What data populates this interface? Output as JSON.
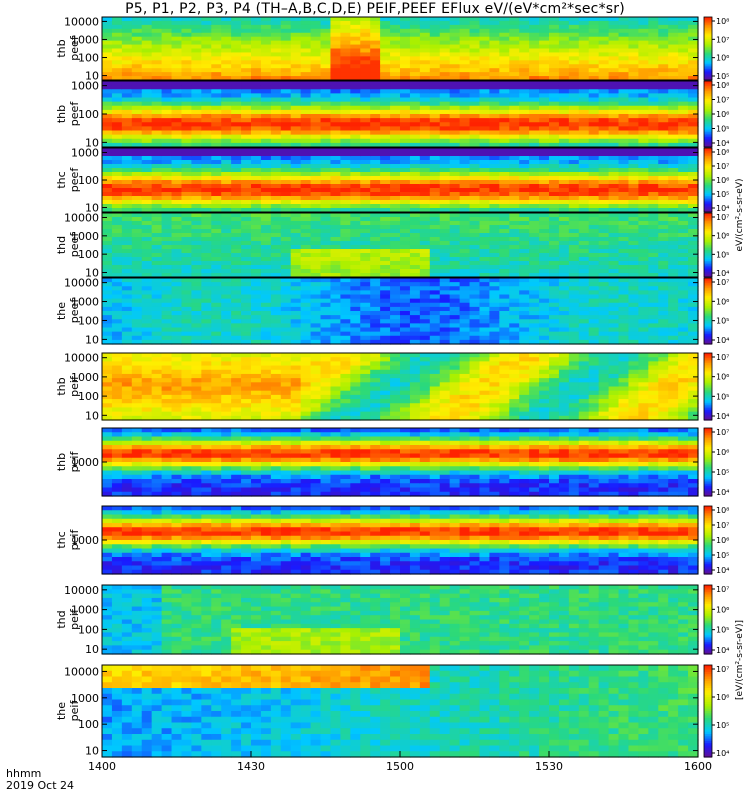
{
  "title": "P5, P1, P2, P3, P4 (TH–A,B,C,D,E) PEIF,PEEF EFlux eV/(eV*cm²*sec*sr)",
  "footer": {
    "time_label": "hhmm",
    "date_label": "2019 Oct 24"
  },
  "colorbar_label_top": "eV/(cm²-s-sr-eV)",
  "colorbar_label_bottom": "[eV/(cm²-s-sr-eV)]",
  "colormap": [
    "#6a0d8a",
    "#1a1aff",
    "#00c8ff",
    "#2bd97a",
    "#aaf000",
    "#ffee00",
    "#ff9900",
    "#ff2200"
  ],
  "chart_data": {
    "type": "heatmap",
    "x_ticks": [
      "1400",
      "1430",
      "1500",
      "1530",
      "1600"
    ],
    "x_range_minutes": [
      0,
      120
    ],
    "y_scale": "log",
    "panels": [
      {
        "probe": "thb",
        "species": "peef",
        "yticks": [
          "10",
          "100",
          "1000",
          "10000"
        ],
        "cb_ticks": [
          "10⁵",
          "10⁶",
          "10⁷",
          "10⁸"
        ],
        "variant": 0
      },
      {
        "probe": "thb",
        "species": "peef",
        "yticks": [
          "10",
          "100",
          "1000"
        ],
        "cb_ticks": [
          "10⁴",
          "10⁵",
          "10⁶",
          "10⁷",
          "10⁸"
        ],
        "variant": 1
      },
      {
        "probe": "thc",
        "species": "peef",
        "yticks": [
          "10",
          "100",
          "1000"
        ],
        "cb_ticks": [
          "10⁴",
          "10⁵",
          "10⁶",
          "10⁷",
          "10⁸"
        ],
        "variant": 2
      },
      {
        "probe": "thd",
        "species": "peef",
        "yticks": [
          "10",
          "100",
          "1000",
          "10000"
        ],
        "cb_ticks": [
          "10⁴",
          "10⁵",
          "10⁶",
          "10⁷"
        ],
        "variant": 3
      },
      {
        "probe": "the",
        "species": "peef",
        "yticks": [
          "10",
          "100",
          "1000",
          "10000"
        ],
        "cb_ticks": [
          "10⁴",
          "10⁵",
          "10⁶",
          "10⁷"
        ],
        "variant": 4
      },
      {
        "probe": "thb",
        "species": "peif",
        "yticks": [
          "10",
          "100",
          "1000",
          "10000"
        ],
        "cb_ticks": [
          "10⁴",
          "10⁵",
          "10⁶",
          "10⁷"
        ],
        "variant": 5
      },
      {
        "probe": "thb",
        "species": "peif",
        "yticks": [
          "1000"
        ],
        "cb_ticks": [
          "10⁴",
          "10⁵",
          "10⁶",
          "10⁷"
        ],
        "variant": 6
      },
      {
        "probe": "thc",
        "species": "peif",
        "yticks": [
          "1000"
        ],
        "cb_ticks": [
          "10⁴",
          "10⁵",
          "10⁶",
          "10⁷",
          "10⁸"
        ],
        "variant": 7
      },
      {
        "probe": "thd",
        "species": "peif",
        "yticks": [
          "10",
          "100",
          "1000",
          "10000"
        ],
        "cb_ticks": [
          "10⁴",
          "10⁵",
          "10⁶",
          "10⁷"
        ],
        "variant": 8
      },
      {
        "probe": "the",
        "species": "peif",
        "yticks": [
          "10",
          "100",
          "1000",
          "10000"
        ],
        "cb_ticks": [
          "10⁴",
          "10⁵",
          "10⁶",
          "10⁷"
        ],
        "variant": 9
      }
    ]
  }
}
